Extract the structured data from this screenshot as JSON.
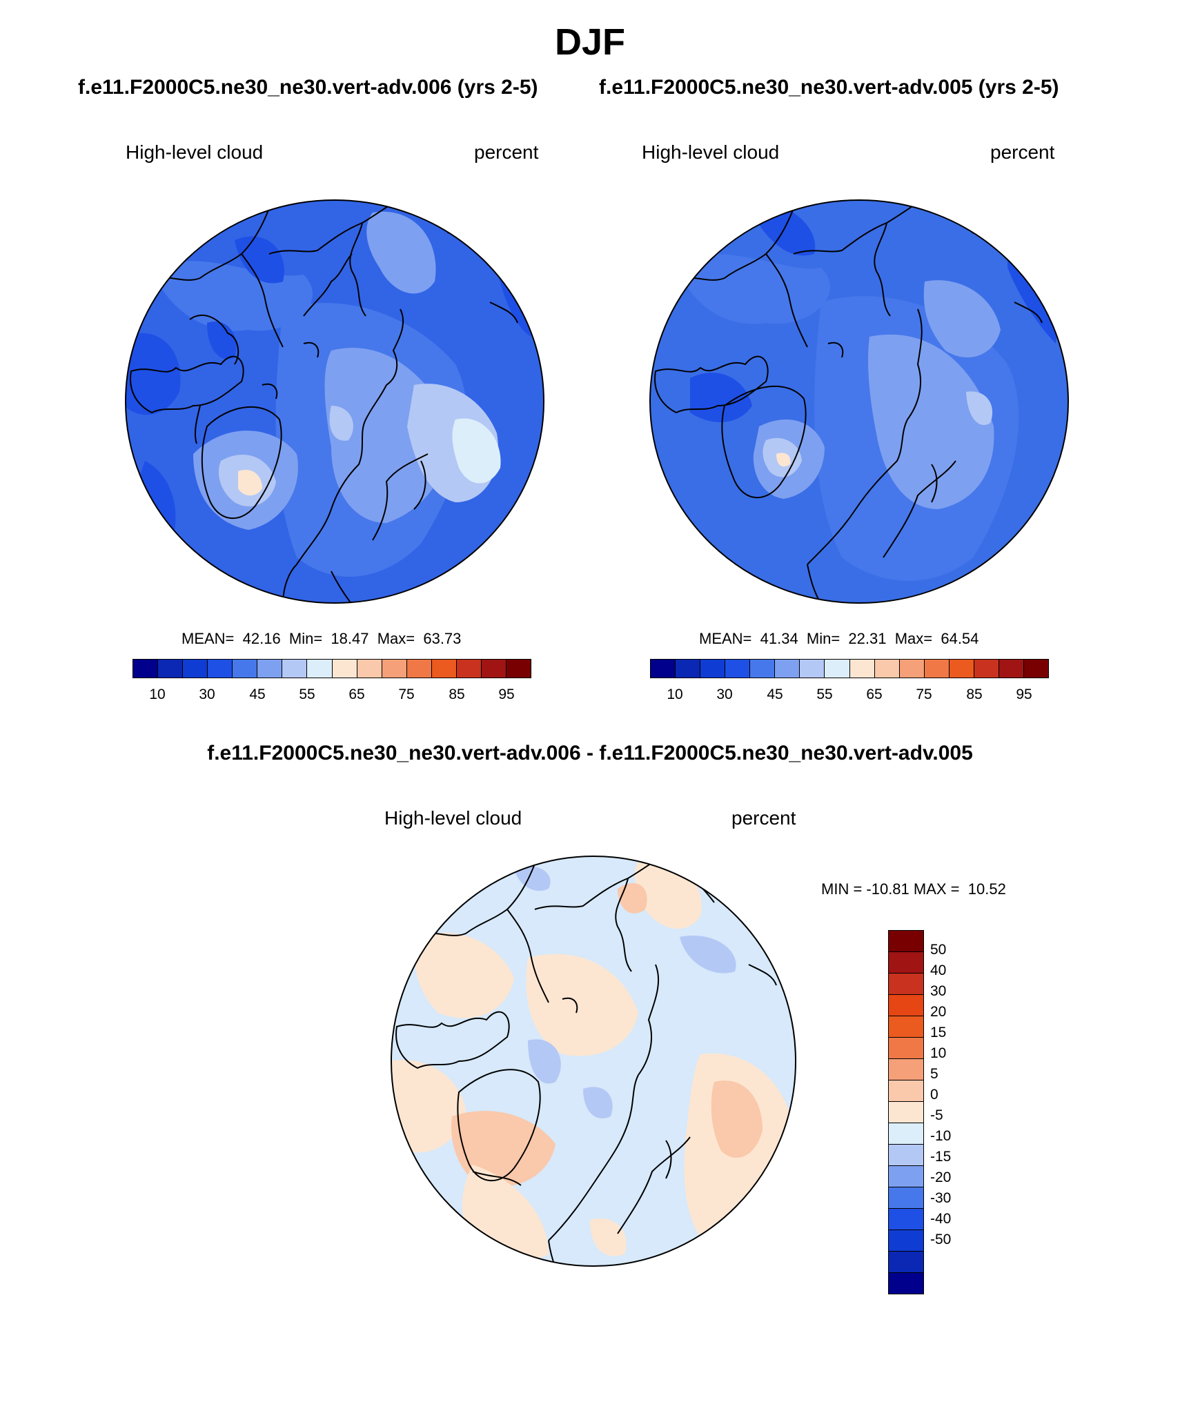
{
  "title": "DJF",
  "panels": [
    {
      "subtitle": "f.e11.F2000C5.ne30_ne30.vert-adv.006 (yrs 2-5)",
      "left_label": "High-level cloud",
      "right_label": "percent",
      "stats": "MEAN=  42.16  Min=  18.47  Max=  63.73",
      "background_color": "#3264e6",
      "colorbar_ticks": [
        "10",
        "30",
        "45",
        "55",
        "65",
        "75",
        "85",
        "95"
      ]
    },
    {
      "subtitle": "f.e11.F2000C5.ne30_ne30.vert-adv.005 (yrs 2-5)",
      "left_label": "High-level cloud",
      "right_label": "percent",
      "stats": "MEAN=  41.34  Min=  22.31  Max=  64.54",
      "background_color": "#3a6ee6",
      "colorbar_ticks": [
        "10",
        "30",
        "45",
        "55",
        "65",
        "75",
        "85",
        "95"
      ]
    }
  ],
  "difference": {
    "title": "f.e11.F2000C5.ne30_ne30.vert-adv.006 - f.e11.F2000C5.ne30_ne30.vert-adv.005",
    "left_label": "High-level cloud",
    "right_label": "percent",
    "stats": "MIN = -10.81 MAX =  10.52",
    "background_color": "#d7e9fa",
    "colorbar_ticks": [
      "50",
      "40",
      "30",
      "20",
      "15",
      "10",
      "5",
      "0",
      "-5",
      "-10",
      "-15",
      "-20",
      "-30",
      "-40",
      "-50"
    ]
  },
  "colorbar_colors": [
    "#00008c",
    "#0a28b4",
    "#0f3cd2",
    "#1e50e6",
    "#4678eb",
    "#7ea0f0",
    "#b4c8f5",
    "#dceefa",
    "#fce6d2",
    "#fac8aa",
    "#f5a078",
    "#f07846",
    "#eb5a1e",
    "#c8321e",
    "#a01414",
    "#780000"
  ],
  "diff_colorbar_colors": [
    "#780000",
    "#a01414",
    "#c8321e",
    "#e64614",
    "#eb5a1e",
    "#f07846",
    "#f5a078",
    "#fac8aa",
    "#fce6d2",
    "#dceefa",
    "#b4c8f5",
    "#7ea0f0",
    "#4678eb",
    "#1e50e6",
    "#0f3cd2",
    "#0a28b4",
    "#00008c"
  ]
}
